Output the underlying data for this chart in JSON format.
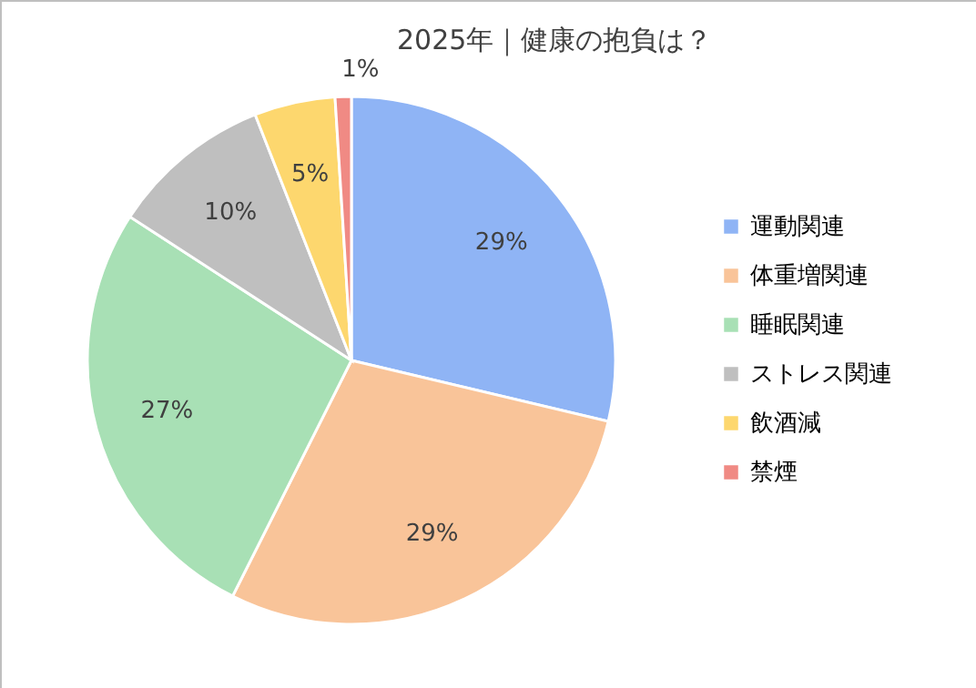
{
  "chart_data": {
    "type": "pie",
    "title": "2025年｜健康の抱負は？",
    "categories": [
      "運動関連",
      "体重増関連",
      "睡眠関連",
      "ストレス関連",
      "飲酒減",
      "禁煙"
    ],
    "values": [
      29,
      29,
      27,
      10,
      5,
      1
    ],
    "colors": [
      "#8fb4f5",
      "#f9c499",
      "#a8e0b5",
      "#bfbfbf",
      "#fdd76e",
      "#f08a84"
    ],
    "value_labels": [
      "29%",
      "29%",
      "27%",
      "10%",
      "5%",
      "1%"
    ],
    "legend": "right"
  }
}
